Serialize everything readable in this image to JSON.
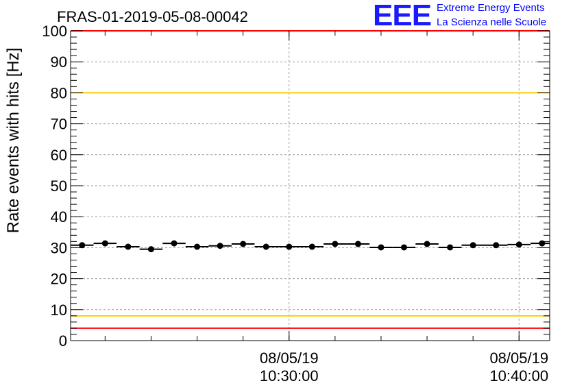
{
  "header": {
    "title": "FRAS-01-2019-05-08-00042",
    "logo": "EEE",
    "brand_line1": "Extreme Energy Events",
    "brand_line2": "La Scienza nelle Scuole"
  },
  "chart_data": {
    "type": "scatter",
    "title": "FRAS-01-2019-05-08-00042",
    "xlabel": "",
    "ylabel": "Rate events with hits [Hz]",
    "ylim": [
      0,
      100
    ],
    "yticks": [
      0,
      10,
      20,
      30,
      40,
      50,
      60,
      70,
      80,
      90,
      100
    ],
    "x_time_range": [
      "08/05/19 10:20:30",
      "08/05/19 10:41:20"
    ],
    "xticks": [
      {
        "date": "08/05/19",
        "time": "10:30:00"
      },
      {
        "date": "08/05/19",
        "time": "10:40:00"
      }
    ],
    "grid": true,
    "series": [
      {
        "x": [
          "10:21:00",
          "10:22:00",
          "10:23:00",
          "10:24:00",
          "10:25:00",
          "10:26:00",
          "10:27:00",
          "10:28:00",
          "10:29:00",
          "10:30:00",
          "10:31:00",
          "10:32:00",
          "10:33:00",
          "10:34:00",
          "10:35:00",
          "10:36:00",
          "10:37:00",
          "10:38:00",
          "10:39:00",
          "10:40:00",
          "10:41:00"
        ],
        "values": [
          30.8,
          31.4,
          30.3,
          29.5,
          31.4,
          30.3,
          30.6,
          31.2,
          30.3,
          30.3,
          30.3,
          31.2,
          31.2,
          30.1,
          30.1,
          31.2,
          30.1,
          30.8,
          30.8,
          31.0,
          31.4
        ],
        "bin_width_seconds": 60,
        "color": "#000000"
      }
    ],
    "reference_lines": [
      {
        "value": 100,
        "color": "#ff0000"
      },
      {
        "value": 80,
        "color": "#ffcc00"
      },
      {
        "value": 8,
        "color": "#ffcc00"
      },
      {
        "value": 4,
        "color": "#ff0000"
      }
    ]
  }
}
